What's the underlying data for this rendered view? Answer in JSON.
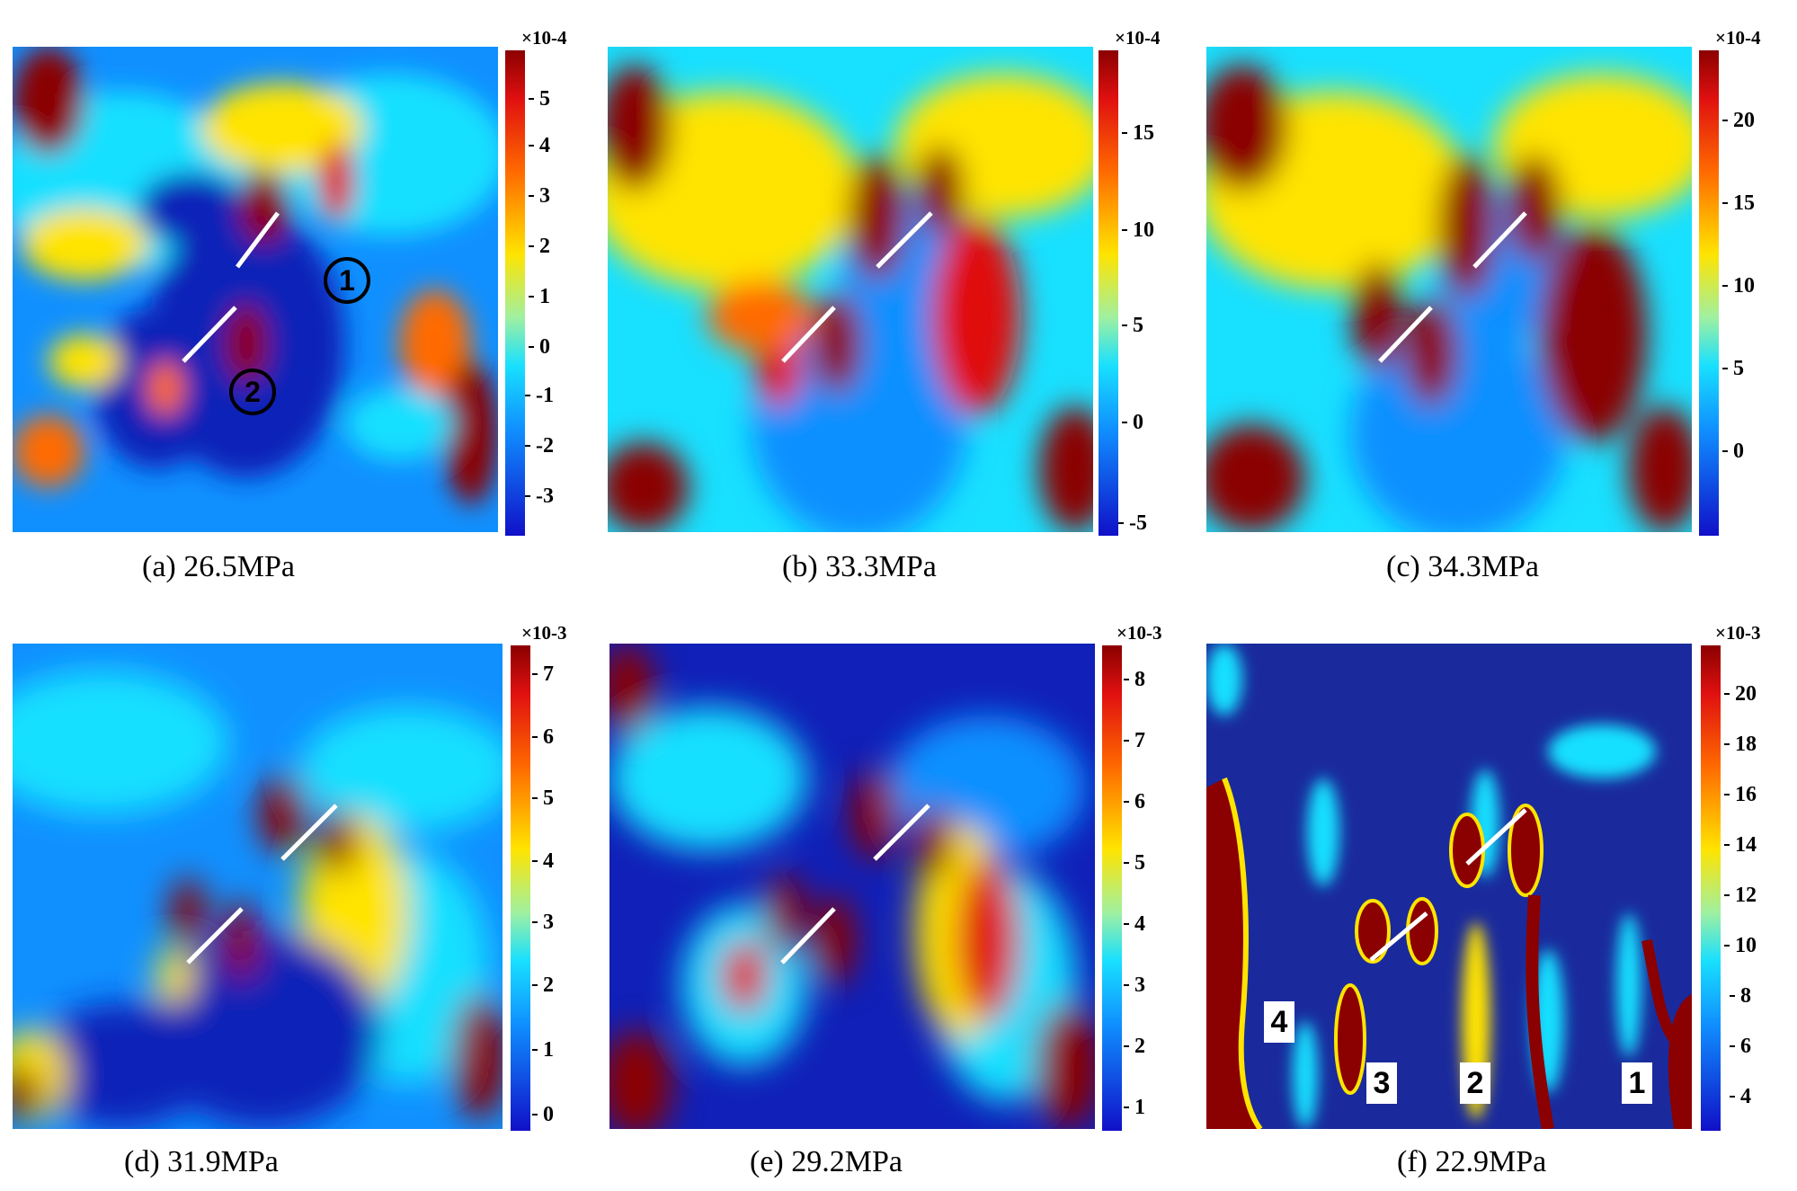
{
  "figure": {
    "panels": [
      {
        "id": "a",
        "caption": "(a) 26.5MPa",
        "colorbar": {
          "scale": "×10-4",
          "ticks": [
            "5",
            "4",
            "3",
            "2",
            "1",
            "0",
            "-1",
            "-2",
            "-3"
          ]
        },
        "markers": [
          "1",
          "2"
        ]
      },
      {
        "id": "b",
        "caption": "(b) 33.3MPa",
        "colorbar": {
          "scale": "×10-4",
          "ticks": [
            "15",
            "10",
            "5",
            "0",
            "-5"
          ]
        },
        "markers": []
      },
      {
        "id": "c",
        "caption": "(c) 34.3MPa",
        "colorbar": {
          "scale": "×10-4",
          "ticks": [
            "20",
            "15",
            "10",
            "5",
            "0"
          ]
        },
        "markers": []
      },
      {
        "id": "d",
        "caption": "(d) 31.9MPa",
        "colorbar": {
          "scale": "×10-3",
          "ticks": [
            "7",
            "6",
            "5",
            "4",
            "3",
            "2",
            "1",
            "0"
          ]
        },
        "markers": []
      },
      {
        "id": "e",
        "caption": "(e) 29.2MPa",
        "colorbar": {
          "scale": "×10-3",
          "ticks": [
            "8",
            "7",
            "6",
            "5",
            "4",
            "3",
            "2",
            "1"
          ]
        },
        "markers": []
      },
      {
        "id": "f",
        "caption": "(f) 22.9MPa",
        "colorbar": {
          "scale": "×10-3",
          "ticks": [
            "20",
            "18",
            "16",
            "14",
            "12",
            "10",
            "8",
            "6",
            "4"
          ]
        },
        "markers": [
          "4",
          "3",
          "2",
          "1"
        ]
      }
    ]
  },
  "colors": {
    "deep_red": "#8b0000",
    "red": "#e01010",
    "orange": "#ff6a00",
    "yellow": "#ffe400",
    "cyan": "#18e0ff",
    "blue": "#1090ff",
    "deep_blue": "#1020b8",
    "flaw_line": "#ffffff"
  }
}
